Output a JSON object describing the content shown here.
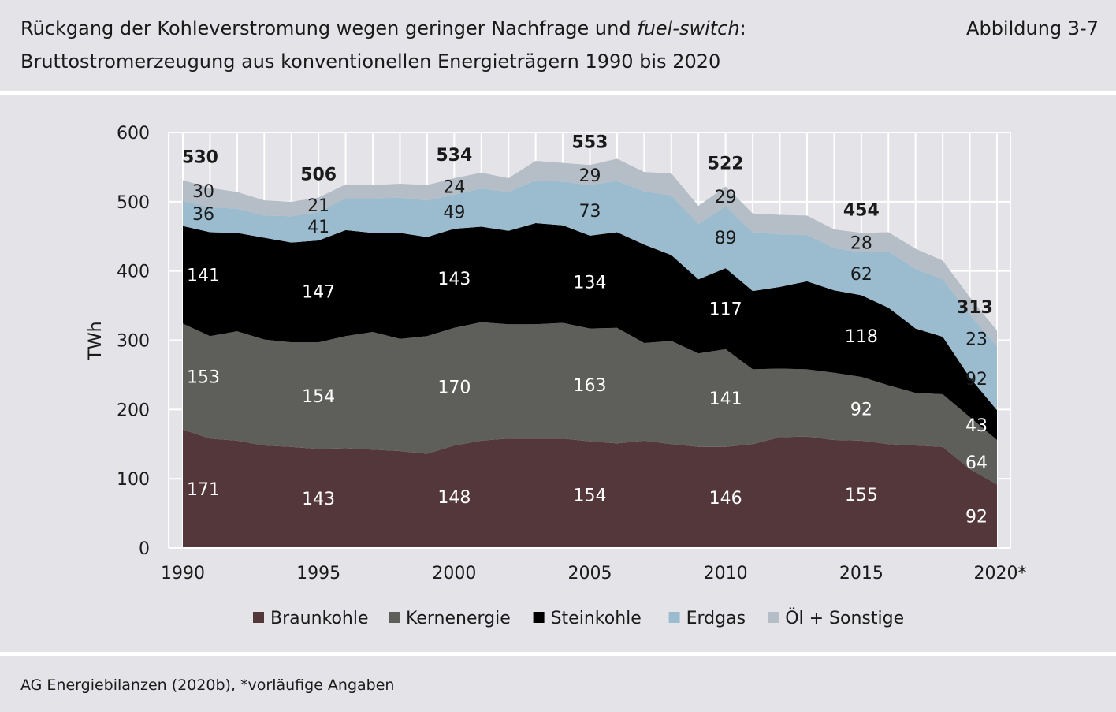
{
  "header": {
    "title_main": "Rückgang der Kohleverstromung wegen geringer Nachfrage und ",
    "title_emph": "fuel-switch",
    "title_colon": ":",
    "subtitle": "Bruttostromerzeugung aus konventionellen Energieträgern 1990 bis 2020",
    "figure_label": "Abbildung 3-7"
  },
  "footer": {
    "source": "AG Energiebilanzen (2020b), *vorläufige Angaben"
  },
  "chart_data": {
    "type": "area",
    "stacked": true,
    "ylabel": "TWh",
    "ylim": [
      0,
      600
    ],
    "yticks": [
      0,
      100,
      200,
      300,
      400,
      500,
      600
    ],
    "x": [
      1990,
      1991,
      1992,
      1993,
      1994,
      1995,
      1996,
      1997,
      1998,
      1999,
      2000,
      2001,
      2002,
      2003,
      2004,
      2005,
      2006,
      2007,
      2008,
      2009,
      2010,
      2011,
      2012,
      2013,
      2014,
      2015,
      2016,
      2017,
      2018,
      2019,
      2020
    ],
    "xticks": [
      "1990",
      "1995",
      "2000",
      "2005",
      "2010",
      "2015",
      "2020*"
    ],
    "xtick_years": [
      1990,
      1995,
      2000,
      2005,
      2010,
      2015,
      2020
    ],
    "grid": true,
    "legend_position": "bottom",
    "series": [
      {
        "name": "Braunkohle",
        "color": "#53373a",
        "values": [
          171,
          158,
          155,
          148,
          146,
          143,
          144,
          142,
          140,
          136,
          148,
          155,
          158,
          158,
          158,
          154,
          151,
          155,
          150,
          146,
          146,
          150,
          160,
          161,
          156,
          155,
          150,
          148,
          146,
          114,
          92
        ]
      },
      {
        "name": "Kernenergie",
        "color": "#5e5e5b",
        "values": [
          153,
          148,
          158,
          153,
          151,
          154,
          162,
          170,
          162,
          170,
          170,
          171,
          165,
          165,
          167,
          163,
          167,
          141,
          149,
          135,
          141,
          108,
          99,
          97,
          97,
          92,
          85,
          76,
          76,
          75,
          64
        ]
      },
      {
        "name": "Steinkohle",
        "color": "#000000",
        "values": [
          141,
          150,
          142,
          147,
          144,
          147,
          153,
          143,
          153,
          143,
          143,
          138,
          135,
          146,
          141,
          134,
          138,
          142,
          124,
          107,
          117,
          113,
          118,
          127,
          119,
          118,
          112,
          93,
          83,
          57,
          43
        ]
      },
      {
        "name": "Erdgas",
        "color": "#9bbccf",
        "values": [
          36,
          36,
          35,
          32,
          38,
          41,
          46,
          50,
          51,
          53,
          49,
          55,
          56,
          62,
          63,
          73,
          74,
          77,
          86,
          80,
          89,
          85,
          76,
          67,
          61,
          62,
          81,
          86,
          83,
          91,
          92
        ]
      },
      {
        "name": "Öl + Sonstige",
        "color": "#b5bdc6",
        "values": [
          30,
          28,
          24,
          22,
          21,
          21,
          20,
          19,
          20,
          22,
          24,
          23,
          20,
          28,
          27,
          29,
          32,
          28,
          32,
          26,
          29,
          27,
          28,
          28,
          27,
          28,
          28,
          29,
          27,
          25,
          23
        ]
      }
    ],
    "totals": [
      {
        "year": 1990,
        "label": "530"
      },
      {
        "year": 1995,
        "label": "506"
      },
      {
        "year": 2000,
        "label": "534"
      },
      {
        "year": 2005,
        "label": "553"
      },
      {
        "year": 2010,
        "label": "522"
      },
      {
        "year": 2015,
        "label": "454"
      },
      {
        "year": 2020,
        "label": "313"
      }
    ],
    "segment_labels": {
      "1990": [
        "171",
        "153",
        "141",
        "36",
        "30"
      ],
      "1995": [
        "143",
        "154",
        "147",
        "41",
        "21"
      ],
      "2000": [
        "148",
        "170",
        "143",
        "49",
        "24"
      ],
      "2005": [
        "154",
        "163",
        "134",
        "73",
        "29"
      ],
      "2010": [
        "146",
        "141",
        "117",
        "89",
        "29"
      ],
      "2015": [
        "155",
        "92",
        "118",
        "62",
        "28"
      ],
      "2020": [
        "92",
        "64",
        "43",
        "92",
        "23"
      ]
    }
  }
}
